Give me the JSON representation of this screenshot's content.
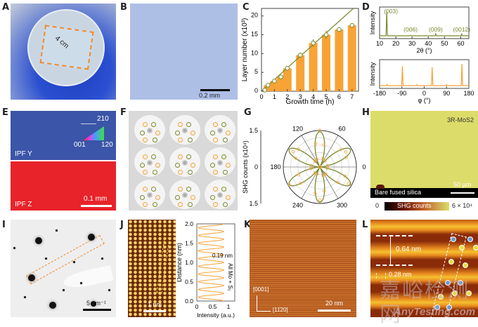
{
  "panels": {
    "A": {
      "label": "A",
      "dimension": "4 cm"
    },
    "B": {
      "label": "B",
      "scalebar": "0.2 mm"
    },
    "C": {
      "label": "C"
    },
    "D": {
      "label": "D"
    },
    "E": {
      "label": "E",
      "ipf_y": "IPF Y",
      "ipf_z": "IPF Z",
      "scalebar": "0.1 mm",
      "legend": {
        "a": "210",
        "b": "001",
        "c": "120"
      }
    },
    "F": {
      "label": "F"
    },
    "G": {
      "label": "G"
    },
    "H": {
      "label": "H",
      "material": "3R-MoS2",
      "substrate": "Bare fused silica",
      "scalebar": "50 µm",
      "colorbar_min": "0",
      "colorbar_label": "SHG counts",
      "colorbar_max": "6 × 10⁴"
    },
    "I": {
      "label": "I",
      "scalebar": "5 nm⁻¹"
    },
    "J": {
      "label": "J",
      "scalebar": "1 nm",
      "spacing": "0.19 nm",
      "annotation": "All Mo + S₂"
    },
    "K": {
      "label": "K",
      "dir1": "[0001]",
      "dir2": "[11̄20]",
      "scalebar": "20 nm"
    },
    "L": {
      "label": "L",
      "spacing1": "0.64 nm",
      "spacing2": "0.28 nm"
    }
  },
  "watermark": {
    "cn": "嘉峪检测网",
    "en": "AnyTesting.com"
  },
  "colors": {
    "orange": "#f7a336",
    "olive": "#7b8a2e",
    "blue": "#3b55a8",
    "red": "#e8232a",
    "yellow": "#dcdc6a"
  },
  "chart_data": [
    {
      "id": "C",
      "type": "bar",
      "x": [
        0.5,
        1,
        1.5,
        2,
        3,
        4,
        5,
        6,
        7
      ],
      "values": [
        1.6,
        2.7,
        3.8,
        6.1,
        9.6,
        12.8,
        15.0,
        16.4,
        17.5
      ],
      "points": {
        "x": [
          0.25,
          0.5,
          1,
          1.5,
          2,
          3,
          4,
          5,
          6,
          7
        ],
        "y": [
          0.3,
          1.6,
          2.7,
          3.8,
          6.1,
          9.6,
          12.8,
          15.0,
          16.4,
          17.5
        ],
        "err": [
          0.2,
          0.3,
          0.3,
          0.3,
          0.5,
          0.7,
          1.0,
          1.1,
          0.6,
          0.5
        ]
      },
      "fit_line": {
        "x": [
          0,
          7.1
        ],
        "y": [
          0,
          22
        ]
      },
      "xlabel": "Growth time (h)",
      "ylabel": "Layer number (x10³)",
      "xlim": [
        0,
        7.5
      ],
      "ylim": [
        0,
        22
      ],
      "xticks": [
        0,
        1,
        2,
        3,
        4,
        5,
        6,
        7
      ],
      "yticks": [
        0,
        5,
        10,
        15,
        20
      ]
    },
    {
      "id": "D-top",
      "type": "line",
      "peaks": [
        {
          "x": 14.4,
          "h": 1.0,
          "label": "(003)"
        },
        {
          "x": 29.1,
          "h": 0.02,
          "label": "(006)"
        },
        {
          "x": 44.6,
          "h": 0.08,
          "label": "(009)"
        },
        {
          "x": 60.6,
          "h": 0.07,
          "label": "(0012)"
        }
      ],
      "xlabel": "2θ (°)",
      "ylabel": "Intensity",
      "xlim": [
        10,
        65
      ],
      "xticks": [
        10,
        20,
        30,
        40,
        50,
        60
      ]
    },
    {
      "id": "D-bottom",
      "type": "line",
      "peaks": [
        {
          "x": -88,
          "h": 0.9
        },
        {
          "x": 32,
          "h": 0.85
        },
        {
          "x": 152,
          "h": 1.0
        },
        {
          "x": -150,
          "h": 0.05
        },
        {
          "x": -30,
          "h": 0.04
        },
        {
          "x": 90,
          "h": 0.05
        }
      ],
      "xlabel": "φ (°)",
      "ylabel": "Intensity",
      "xlim": [
        -180,
        180
      ],
      "xticks": [
        -180,
        -90,
        0,
        90,
        180
      ]
    },
    {
      "id": "G",
      "type": "polar",
      "angle_ticks": [
        0,
        60,
        120,
        180,
        240,
        300
      ],
      "rlim": [
        0,
        1.5
      ],
      "ylabel": "SHG counts (x10⁴)",
      "yticks": [
        "1.5",
        "0",
        "1.5"
      ],
      "symmetry": 6,
      "max": 1.45,
      "petal_angles": [
        30,
        90,
        150,
        210,
        270,
        330
      ]
    }
  ]
}
